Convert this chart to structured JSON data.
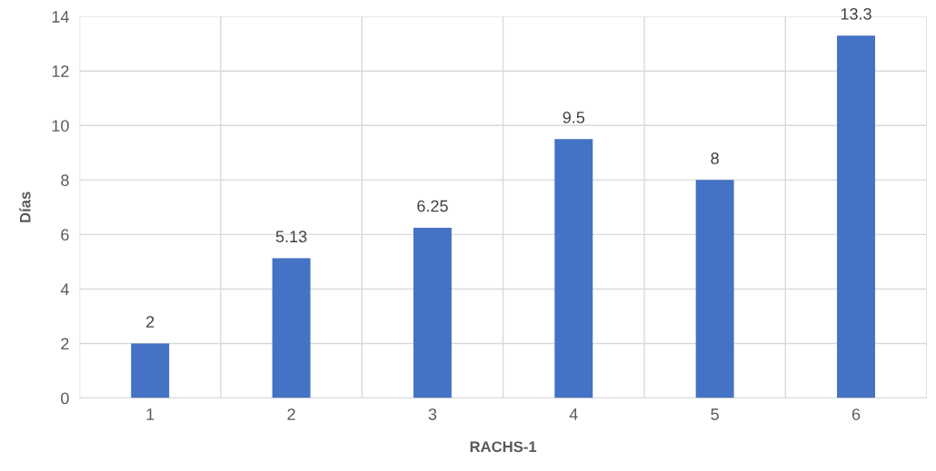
{
  "chart_data": {
    "type": "bar",
    "xlabel": "RACHS-1",
    "ylabel": "Días",
    "categories": [
      "1",
      "2",
      "3",
      "4",
      "5",
      "6"
    ],
    "values": [
      2,
      5.13,
      6.25,
      9.5,
      8,
      13.3
    ],
    "color": "#4472c4",
    "ylim": [
      0,
      14
    ],
    "yticks": [
      0,
      2,
      4,
      6,
      8,
      10,
      12,
      14
    ],
    "grid": true,
    "data_labels": true
  }
}
